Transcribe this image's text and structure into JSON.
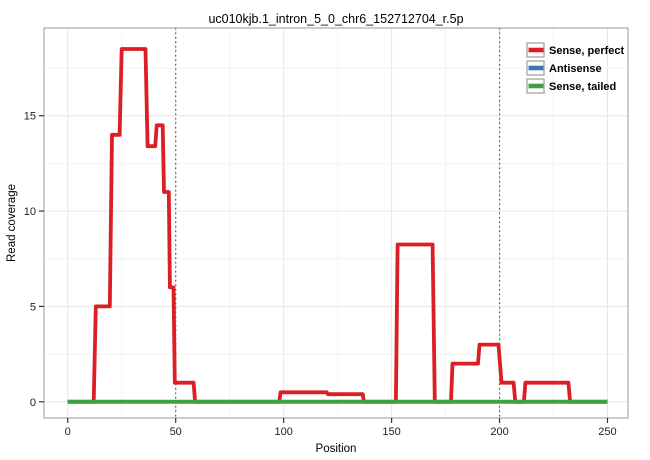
{
  "figure": {
    "background": "#ffffff",
    "panel_background": "#ffffff",
    "panel_border_color": "#999999",
    "grid_major_color": "#e6e6e6",
    "grid_minor_color": "#f2f2f2",
    "vline_color": "#555555",
    "tick_color": "#333333"
  },
  "chart_data": {
    "type": "line",
    "title": "uc010kjb.1_intron_5_0_chr6_152712704_r.5p",
    "xlabel": "Position",
    "ylabel": "Read coverage",
    "xlim": [
      -11,
      259.5
    ],
    "ylim": [
      -0.85,
      19.6
    ],
    "xticks": [
      0,
      50,
      100,
      150,
      200,
      250
    ],
    "yticks": [
      0,
      5,
      10,
      15
    ],
    "x_minor_ticks": [
      25,
      75,
      125,
      175,
      225
    ],
    "y_minor_ticks": [
      2.5,
      7.5,
      12.5,
      17.5
    ],
    "vlines": [
      50,
      200
    ],
    "grid": true,
    "legend_position": "top-right-inside",
    "series": [
      {
        "name": "Sense, perfect",
        "color": "#DC1E26",
        "points": [
          [
            0,
            0
          ],
          [
            12,
            0
          ],
          [
            13,
            5
          ],
          [
            19.5,
            5
          ],
          [
            20.5,
            14
          ],
          [
            24,
            14
          ],
          [
            25,
            18.5
          ],
          [
            36,
            18.5
          ],
          [
            37,
            13.4
          ],
          [
            40.5,
            13.4
          ],
          [
            41.2,
            14.5
          ],
          [
            44,
            14.5
          ],
          [
            44.6,
            11
          ],
          [
            46.8,
            11
          ],
          [
            47.3,
            6
          ],
          [
            49,
            6
          ],
          [
            49.6,
            1
          ],
          [
            58.3,
            1
          ],
          [
            59,
            0
          ],
          [
            98,
            0
          ],
          [
            98.6,
            0.5
          ],
          [
            120,
            0.5
          ],
          [
            120.5,
            0.4
          ],
          [
            136.6,
            0.4
          ],
          [
            137.2,
            0
          ],
          [
            152,
            0
          ],
          [
            152.8,
            8.25
          ],
          [
            169,
            8.25
          ],
          [
            170,
            0
          ],
          [
            177.5,
            0
          ],
          [
            178.2,
            2
          ],
          [
            190,
            2
          ],
          [
            190.7,
            3
          ],
          [
            199.5,
            3
          ],
          [
            200.9,
            1
          ],
          [
            206.5,
            1
          ],
          [
            207.3,
            0
          ],
          [
            211.3,
            0
          ],
          [
            212,
            1
          ],
          [
            231.9,
            1
          ],
          [
            232.7,
            0
          ],
          [
            250,
            0
          ]
        ]
      },
      {
        "name": "Antisense",
        "color": "#3D77B2",
        "points": [
          [
            0,
            0
          ],
          [
            250,
            0
          ]
        ]
      },
      {
        "name": "Sense, tailed",
        "color": "#3FA045",
        "points": [
          [
            0,
            0
          ],
          [
            250,
            0
          ]
        ]
      }
    ]
  }
}
